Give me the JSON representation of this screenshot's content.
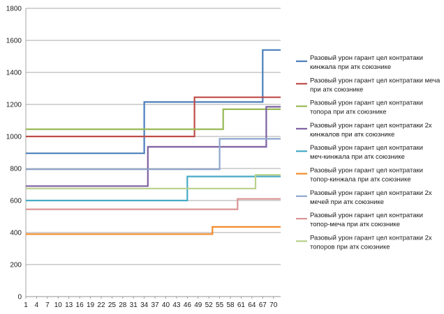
{
  "chart_data": {
    "type": "line",
    "title": "",
    "xlabel": "",
    "ylabel": "",
    "ylim": [
      0,
      1800
    ],
    "yticks": [
      0,
      200,
      400,
      600,
      800,
      1000,
      1200,
      1400,
      1600,
      1800
    ],
    "xlim": [
      1,
      72
    ],
    "xticks": [
      1,
      4,
      7,
      10,
      13,
      16,
      19,
      22,
      25,
      28,
      31,
      34,
      37,
      40,
      43,
      46,
      49,
      52,
      55,
      58,
      61,
      64,
      67,
      70
    ],
    "grid": "horizontal",
    "legend_position": "right",
    "series": [
      {
        "name": "Разовый урон гарант цел контратаки кинжала при атк союзнике",
        "color": "#4a7ebb",
        "points": [
          [
            1,
            895
          ],
          [
            34,
            895
          ],
          [
            34,
            1215
          ],
          [
            67,
            1215
          ],
          [
            67,
            1540
          ],
          [
            72,
            1540
          ]
        ]
      },
      {
        "name": "Разовый урон гарант цел контратаки меча при атк союзнике",
        "color": "#be4b48",
        "points": [
          [
            1,
            1000
          ],
          [
            48,
            1000
          ],
          [
            48,
            1245
          ],
          [
            72,
            1245
          ]
        ]
      },
      {
        "name": "Разовый урон гарант цел контратаки топора при атк союзнике",
        "color": "#98b954",
        "points": [
          [
            1,
            1045
          ],
          [
            56,
            1045
          ],
          [
            56,
            1170
          ],
          [
            72,
            1170
          ]
        ]
      },
      {
        "name": "Разовый урон гарант цел контратаки 2х кинжалов при атк союзнике",
        "color": "#7d60a0",
        "points": [
          [
            1,
            690
          ],
          [
            35,
            690
          ],
          [
            35,
            935
          ],
          [
            68,
            935
          ],
          [
            68,
            1185
          ],
          [
            72,
            1185
          ]
        ]
      },
      {
        "name": "Разовый урон гарант цел контратаки меч-кинжала при атк союзнике",
        "color": "#46aac5",
        "points": [
          [
            1,
            600
          ],
          [
            46,
            600
          ],
          [
            46,
            750
          ],
          [
            72,
            750
          ]
        ]
      },
      {
        "name": "Разовый урон гарант цел контратаки топор-кинжала при атк союзнике",
        "color": "#f38b2a",
        "points": [
          [
            1,
            390
          ],
          [
            53,
            390
          ],
          [
            53,
            435
          ],
          [
            72,
            435
          ]
        ]
      },
      {
        "name": "Разовый урон гарант цел контратаки 2х мечей при атк союзнике",
        "color": "#8ea5cb",
        "points": [
          [
            1,
            795
          ],
          [
            55,
            795
          ],
          [
            55,
            985
          ],
          [
            72,
            985
          ]
        ]
      },
      {
        "name": "Разовый урон гарант цел контратаки топор-меча при атк союзнике",
        "color": "#d99593",
        "points": [
          [
            1,
            545
          ],
          [
            60,
            545
          ],
          [
            60,
            610
          ],
          [
            72,
            610
          ]
        ]
      },
      {
        "name": "Разовый урон гарант цел контратаки 2х топоров при атк союзнике",
        "color": "#b9d08a",
        "points": [
          [
            1,
            675
          ],
          [
            65,
            675
          ],
          [
            65,
            760
          ],
          [
            72,
            760
          ]
        ]
      }
    ]
  }
}
